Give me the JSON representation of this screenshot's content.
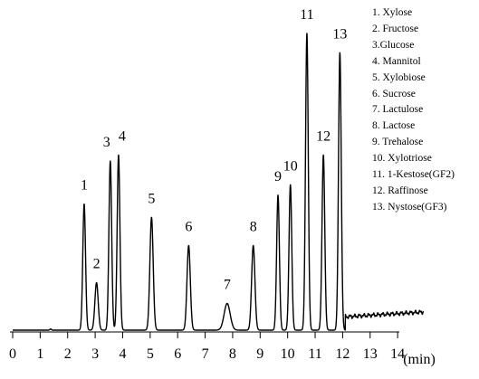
{
  "chart_data": {
    "type": "line",
    "title": "",
    "xlabel": "(min)",
    "ylabel": "",
    "xlim": [
      0,
      15
    ],
    "ylim": [
      0,
      100
    ],
    "x_ticks": [
      0,
      1,
      2,
      3,
      4,
      5,
      6,
      7,
      8,
      9,
      10,
      11,
      12,
      13,
      14
    ],
    "grid": false,
    "legend_position": "top-right",
    "line_color": "#000000",
    "peaks": [
      {
        "label": "1",
        "x": 2.6,
        "height": 42.5,
        "width": 0.05
      },
      {
        "label": "2",
        "x": 3.05,
        "height": 16.0,
        "width": 0.06
      },
      {
        "label": "3",
        "x": 3.55,
        "height": 57.0,
        "width": 0.05
      },
      {
        "label": "4",
        "x": 3.85,
        "height": 59.0,
        "width": 0.05
      },
      {
        "label": "5",
        "x": 5.05,
        "height": 38.0,
        "width": 0.06
      },
      {
        "label": "6",
        "x": 6.4,
        "height": 28.5,
        "width": 0.06
      },
      {
        "label": "7",
        "x": 7.8,
        "height": 9.0,
        "width": 0.11
      },
      {
        "label": "8",
        "x": 8.75,
        "height": 28.5,
        "width": 0.06
      },
      {
        "label": "9",
        "x": 9.65,
        "height": 45.5,
        "width": 0.05
      },
      {
        "label": "10",
        "x": 10.1,
        "height": 49.0,
        "width": 0.05
      },
      {
        "label": "11",
        "x": 10.7,
        "height": 100.0,
        "width": 0.05
      },
      {
        "label": "12",
        "x": 11.3,
        "height": 59.0,
        "width": 0.05
      },
      {
        "label": "13",
        "x": 11.9,
        "height": 93.5,
        "width": 0.05
      }
    ],
    "legend": [
      "1. Xylose",
      "2. Fructose",
      "3.Glucose",
      "4. Mannitol",
      "5. Xylobiose",
      "6. Sucrose",
      "7. Lactulose",
      "8. Lactose",
      "9. Trehalose",
      "10.  Xylotriose",
      "11.  1-Kestose(GF2)",
      "12.  Raffinose",
      "13.  Nystose(GF3)"
    ]
  }
}
